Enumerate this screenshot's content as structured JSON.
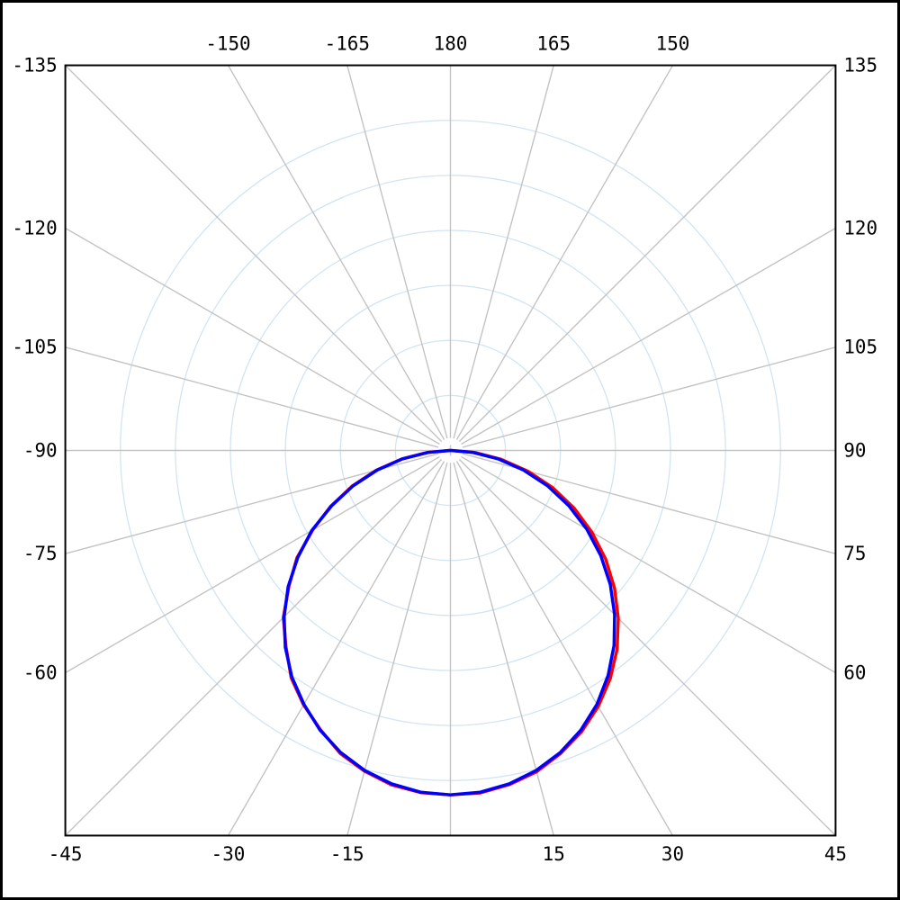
{
  "page": {
    "background": "#ffffff",
    "outer_border_color": "#000000"
  },
  "chart_data": {
    "type": "line",
    "projection": "polar",
    "title": "",
    "angle_unit": "deg",
    "zero_angle_direction": "down",
    "spoke_step_deg": 15,
    "ring_count": 6,
    "rings_equally_spaced": true,
    "radial_tick_labels_shown": false,
    "legend_shown": false,
    "angle_labels": [
      {
        "angle": -135,
        "text": "-135"
      },
      {
        "angle": -150,
        "text": "-150"
      },
      {
        "angle": -165,
        "text": "-165"
      },
      {
        "angle": 180,
        "text": "180"
      },
      {
        "angle": 165,
        "text": "165"
      },
      {
        "angle": 150,
        "text": "150"
      },
      {
        "angle": 135,
        "text": "135"
      },
      {
        "angle": 120,
        "text": "120"
      },
      {
        "angle": 105,
        "text": "105"
      },
      {
        "angle": 90,
        "text": "90"
      },
      {
        "angle": 75,
        "text": "75"
      },
      {
        "angle": 60,
        "text": "60"
      },
      {
        "angle": 45,
        "text": "45"
      },
      {
        "angle": 30,
        "text": "30"
      },
      {
        "angle": 15,
        "text": "15"
      },
      {
        "angle": -15,
        "text": "-15"
      },
      {
        "angle": -30,
        "text": "-30"
      },
      {
        "angle": -45,
        "text": "-45"
      },
      {
        "angle": -60,
        "text": "-60"
      },
      {
        "angle": -75,
        "text": "-75"
      },
      {
        "angle": -90,
        "text": "-90"
      },
      {
        "angle": -105,
        "text": "-105"
      },
      {
        "angle": -120,
        "text": "-120"
      }
    ],
    "angles_deg": [
      -90,
      -85,
      -80,
      -75,
      -70,
      -65,
      -60,
      -55,
      -50,
      -45,
      -40,
      -35,
      -30,
      -25,
      -20,
      -15,
      -10,
      -5,
      0,
      5,
      10,
      15,
      20,
      25,
      30,
      35,
      40,
      45,
      50,
      55,
      60,
      65,
      70,
      75,
      80,
      85,
      90
    ],
    "series": [
      {
        "name": "red",
        "color": "#ff0000",
        "values_pct": [
          0.4,
          6.8,
          14.4,
          22.4,
          30.4,
          38.4,
          46.2,
          54.4,
          61.2,
          68.6,
          74.3,
          80.6,
          85.3,
          89.4,
          93.6,
          96.4,
          98.6,
          99.7,
          100,
          99.8,
          98.5,
          96.6,
          93.6,
          90.1,
          85.8,
          80.9,
          75.3,
          68.9,
          62.2,
          55.0,
          47.4,
          39.6,
          31.6,
          23.3,
          15.0,
          7.3,
          0.4
        ]
      },
      {
        "name": "blue",
        "color": "#0000ff",
        "values_pct": [
          0,
          6.5,
          14.1,
          22.0,
          30.1,
          38.1,
          46.5,
          54.1,
          61.5,
          68.3,
          74.6,
          80.3,
          85.1,
          89.6,
          93.3,
          96.2,
          98.3,
          99.6,
          100,
          99.6,
          98.3,
          96.2,
          93.3,
          89.6,
          85.1,
          79.8,
          73.9,
          67.4,
          60.6,
          53.3,
          45.7,
          37.9,
          30.0,
          21.9,
          14.0,
          6.4,
          0
        ]
      }
    ],
    "max_value_pct": 100,
    "colors": {
      "frame": "#000000",
      "spoke": "#c3c3c3",
      "ring": "#d2e4f1",
      "center_marker": "#aed2ea",
      "background": "#ffffff"
    }
  }
}
